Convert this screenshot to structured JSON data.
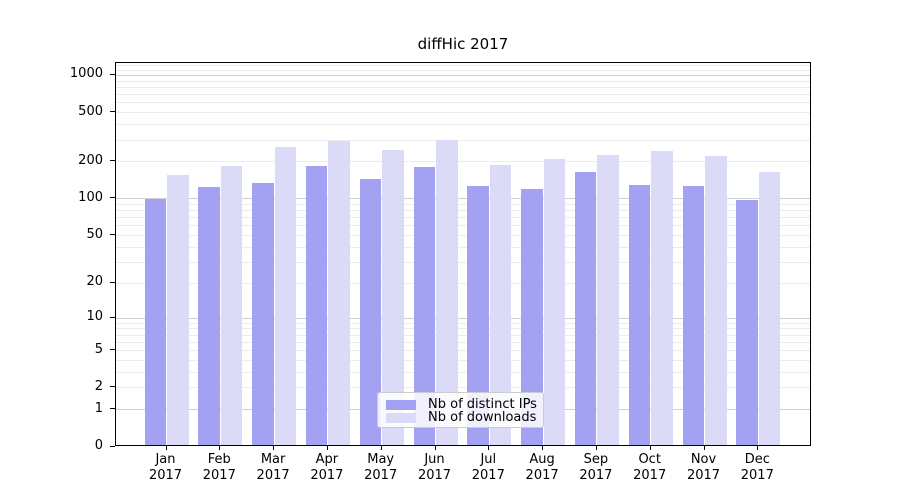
{
  "title": "diffHic 2017",
  "chart_data": {
    "type": "bar",
    "title": "diffHic 2017",
    "xlabel": "",
    "ylabel": "",
    "yscale": "log1p",
    "ylim": [
      0,
      1250
    ],
    "yticks": [
      1000,
      500,
      200,
      100,
      50,
      20,
      10,
      5,
      2,
      1,
      0
    ],
    "grid": "both",
    "legend_position": "inside-bottom-center",
    "year_label": "2017",
    "months": [
      "Jan",
      "Feb",
      "Mar",
      "Apr",
      "May",
      "Jun",
      "Jul",
      "Aug",
      "Sep",
      "Oct",
      "Nov",
      "Dec"
    ],
    "categories": [
      "Jan 2017",
      "Feb 2017",
      "Mar 2017",
      "Apr 2017",
      "May 2017",
      "Jun 2017",
      "Jul 2017",
      "Aug 2017",
      "Sep 2017",
      "Oct 2017",
      "Nov 2017",
      "Dec 2017"
    ],
    "series": [
      {
        "name": "Nb of distinct IPs",
        "color": "#a3a1f2",
        "values": [
          97,
          122,
          132,
          181,
          143,
          178,
          125,
          118,
          163,
          128,
          124,
          96
        ]
      },
      {
        "name": "Nb of downloads",
        "color": "#dcdbf7",
        "values": [
          153,
          180,
          259,
          288,
          244,
          295,
          185,
          206,
          222,
          239,
          220,
          163
        ]
      }
    ]
  }
}
